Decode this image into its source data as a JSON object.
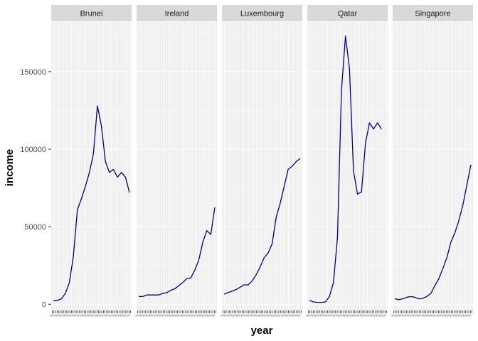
{
  "chart_data": {
    "type": "line",
    "facet_by": "country",
    "xlabel": "year",
    "ylabel": "income",
    "ylim": [
      -4000,
      182000
    ],
    "y_ticks": [
      0,
      50000,
      100000,
      150000
    ],
    "y_tick_labels": [
      "0",
      "50000",
      "100000",
      "150000"
    ],
    "x_categories": [
      "1980",
      "1981",
      "1982",
      "1983",
      "1984",
      "1985",
      "1986",
      "1987",
      "1988",
      "1989",
      "1990",
      "1991",
      "1992",
      "1993",
      "1994",
      "1995",
      "1996",
      "1997",
      "1998",
      "1999",
      "2000",
      "2001",
      "2002",
      "2003",
      "2004",
      "2005",
      "2006",
      "2007",
      "2008",
      "2009",
      "2010",
      "2011",
      "2012",
      "2013",
      "2014",
      "2015",
      "2016",
      "2017",
      "2018",
      "2019",
      "2020",
      "2021",
      "2022",
      "2023",
      "2024",
      "2025",
      "2026",
      "2027",
      "2028",
      "2029"
    ],
    "grid": true,
    "background": "#ebebeb",
    "strip_color": "#d9d9d9",
    "line_color": "#000080",
    "series": [
      {
        "name": "Brunei",
        "points": [
          [
            0,
            2200
          ],
          [
            3,
            2500
          ],
          [
            6,
            3500
          ],
          [
            9,
            7000
          ],
          [
            12,
            14000
          ],
          [
            15,
            31000
          ],
          [
            18,
            61000
          ],
          [
            21,
            68000
          ],
          [
            24,
            76000
          ],
          [
            27,
            85000
          ],
          [
            30,
            97000
          ],
          [
            33,
            128000
          ],
          [
            36,
            115000
          ],
          [
            39,
            92000
          ],
          [
            42,
            85000
          ],
          [
            45,
            87000
          ],
          [
            48,
            82000
          ],
          [
            51,
            85000
          ],
          [
            54,
            82000
          ],
          [
            57,
            72000
          ]
        ]
      },
      {
        "name": "Ireland",
        "points": [
          [
            0,
            5000
          ],
          [
            3,
            5000
          ],
          [
            6,
            6000
          ],
          [
            9,
            6000
          ],
          [
            12,
            6000
          ],
          [
            15,
            6000
          ],
          [
            18,
            7000
          ],
          [
            21,
            7500
          ],
          [
            24,
            9000
          ],
          [
            27,
            10000
          ],
          [
            30,
            12000
          ],
          [
            33,
            14000
          ],
          [
            36,
            16500
          ],
          [
            39,
            17000
          ],
          [
            42,
            22000
          ],
          [
            45,
            28500
          ],
          [
            48,
            40000
          ],
          [
            51,
            47500
          ],
          [
            54,
            45000
          ],
          [
            57,
            62500
          ]
        ]
      },
      {
        "name": "Luxembourg",
        "points": [
          [
            0,
            6500
          ],
          [
            3,
            7500
          ],
          [
            6,
            8500
          ],
          [
            9,
            9500
          ],
          [
            12,
            11000
          ],
          [
            15,
            12500
          ],
          [
            18,
            12500
          ],
          [
            21,
            15000
          ],
          [
            24,
            19000
          ],
          [
            27,
            24000
          ],
          [
            30,
            30000
          ],
          [
            33,
            33000
          ],
          [
            36,
            39000
          ],
          [
            39,
            56000
          ],
          [
            42,
            65000
          ],
          [
            45,
            76000
          ],
          [
            48,
            87000
          ],
          [
            51,
            89000
          ],
          [
            54,
            92000
          ],
          [
            57,
            94000
          ]
        ]
      },
      {
        "name": "Qatar",
        "points": [
          [
            0,
            2500
          ],
          [
            3,
            1500
          ],
          [
            6,
            1200
          ],
          [
            9,
            1200
          ],
          [
            12,
            1500
          ],
          [
            15,
            5000
          ],
          [
            18,
            14000
          ],
          [
            21,
            43000
          ],
          [
            24,
            138000
          ],
          [
            27,
            173000
          ],
          [
            30,
            152000
          ],
          [
            33,
            86000
          ],
          [
            36,
            71000
          ],
          [
            39,
            72500
          ],
          [
            42,
            104000
          ],
          [
            45,
            117000
          ],
          [
            48,
            113000
          ],
          [
            51,
            117000
          ],
          [
            54,
            113000
          ]
        ]
      },
      {
        "name": "Singapore",
        "points": [
          [
            0,
            3500
          ],
          [
            3,
            3000
          ],
          [
            6,
            3500
          ],
          [
            9,
            4500
          ],
          [
            12,
            5000
          ],
          [
            15,
            4500
          ],
          [
            18,
            3500
          ],
          [
            21,
            3800
          ],
          [
            24,
            5000
          ],
          [
            27,
            7000
          ],
          [
            30,
            12000
          ],
          [
            33,
            16500
          ],
          [
            36,
            23000
          ],
          [
            39,
            30000
          ],
          [
            42,
            40000
          ],
          [
            45,
            46000
          ],
          [
            48,
            54000
          ],
          [
            51,
            64000
          ],
          [
            54,
            77000
          ],
          [
            57,
            90000
          ]
        ]
      }
    ]
  }
}
